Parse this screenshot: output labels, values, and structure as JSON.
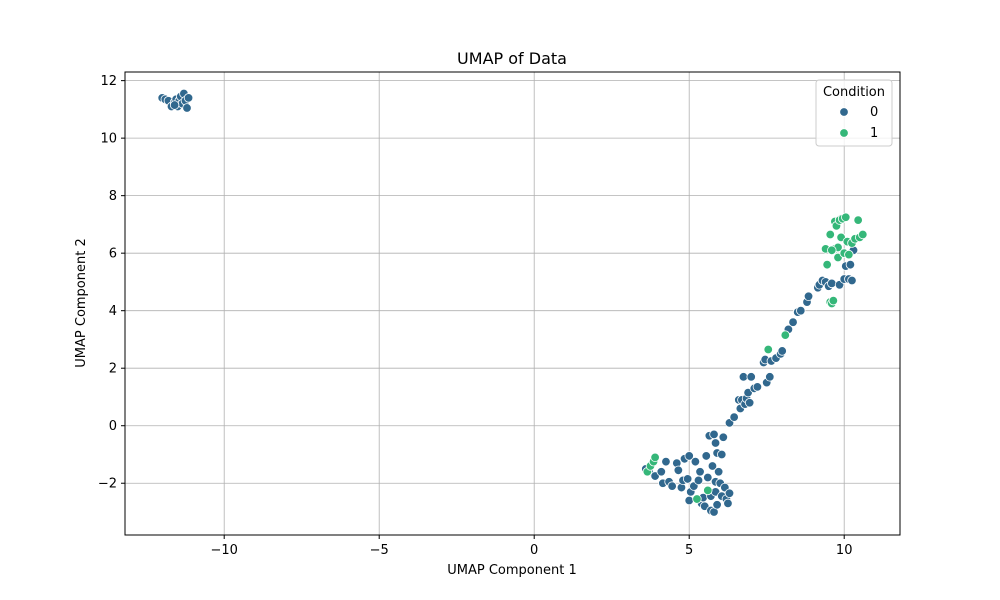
{
  "chart_data": {
    "type": "scatter",
    "title": "UMAP of Data",
    "xlabel": "UMAP Component 1",
    "ylabel": "UMAP Component 2",
    "xlim": [
      -13.2,
      11.8
    ],
    "ylim": [
      -3.8,
      12.3
    ],
    "xticks": [
      -10,
      -5,
      0,
      5,
      10
    ],
    "yticks": [
      -2,
      0,
      2,
      4,
      6,
      8,
      10,
      12
    ],
    "xtick_labels": [
      "−10",
      "−5",
      "0",
      "5",
      "10"
    ],
    "ytick_labels": [
      "−2",
      "0",
      "2",
      "4",
      "6",
      "8",
      "10",
      "12"
    ],
    "grid": true,
    "legend": {
      "title": "Condition",
      "placement": "top-right",
      "entries": [
        "0",
        "1"
      ]
    },
    "colors": {
      "0": "#31688e",
      "1": "#35b779"
    },
    "series": [
      {
        "name": "0",
        "points": [
          [
            -12.0,
            11.4
          ],
          [
            -11.9,
            11.35
          ],
          [
            -11.8,
            11.3
          ],
          [
            -11.7,
            11.1
          ],
          [
            -11.6,
            11.25
          ],
          [
            -11.55,
            11.35
          ],
          [
            -11.5,
            11.1
          ],
          [
            -11.45,
            11.3
          ],
          [
            -11.4,
            11.45
          ],
          [
            -11.35,
            11.2
          ],
          [
            -11.3,
            11.55
          ],
          [
            -11.25,
            11.3
          ],
          [
            -11.2,
            11.05
          ],
          [
            -11.15,
            11.4
          ],
          [
            -11.6,
            11.15
          ],
          [
            3.6,
            -1.5
          ],
          [
            3.7,
            -1.6
          ],
          [
            3.9,
            -1.75
          ],
          [
            4.1,
            -1.6
          ],
          [
            4.15,
            -2.0
          ],
          [
            4.25,
            -1.25
          ],
          [
            4.35,
            -1.95
          ],
          [
            4.45,
            -2.1
          ],
          [
            4.6,
            -1.3
          ],
          [
            4.65,
            -1.55
          ],
          [
            4.75,
            -2.15
          ],
          [
            4.8,
            -1.9
          ],
          [
            4.85,
            -1.15
          ],
          [
            4.95,
            -1.85
          ],
          [
            5.0,
            -2.6
          ],
          [
            5.05,
            -2.3
          ],
          [
            5.0,
            -1.05
          ],
          [
            5.15,
            -2.1
          ],
          [
            5.2,
            -1.25
          ],
          [
            5.3,
            -1.9
          ],
          [
            5.35,
            -1.6
          ],
          [
            5.4,
            -2.7
          ],
          [
            5.45,
            -2.5
          ],
          [
            5.5,
            -2.8
          ],
          [
            5.55,
            -1.05
          ],
          [
            5.6,
            -1.8
          ],
          [
            5.65,
            -0.35
          ],
          [
            5.7,
            -2.45
          ],
          [
            5.7,
            -2.95
          ],
          [
            5.75,
            -1.4
          ],
          [
            5.8,
            -3.0
          ],
          [
            5.8,
            -0.3
          ],
          [
            5.85,
            -0.6
          ],
          [
            5.85,
            -1.95
          ],
          [
            5.85,
            -2.3
          ],
          [
            5.9,
            -0.95
          ],
          [
            5.9,
            -2.75
          ],
          [
            5.95,
            -1.6
          ],
          [
            6.0,
            -2.0
          ],
          [
            6.05,
            -2.45
          ],
          [
            6.1,
            -0.4
          ],
          [
            6.15,
            -2.15
          ],
          [
            6.2,
            -2.55
          ],
          [
            6.25,
            -2.7
          ],
          [
            6.3,
            -2.35
          ],
          [
            6.05,
            -1.0
          ],
          [
            6.3,
            0.1
          ],
          [
            6.45,
            0.3
          ],
          [
            6.6,
            0.9
          ],
          [
            6.65,
            0.6
          ],
          [
            6.7,
            0.9
          ],
          [
            6.75,
            1.7
          ],
          [
            6.8,
            0.75
          ],
          [
            6.85,
            0.95
          ],
          [
            6.9,
            1.15
          ],
          [
            6.95,
            0.8
          ],
          [
            7.0,
            1.7
          ],
          [
            7.1,
            1.3
          ],
          [
            7.2,
            1.35
          ],
          [
            7.4,
            2.2
          ],
          [
            7.45,
            2.3
          ],
          [
            7.5,
            1.5
          ],
          [
            7.6,
            1.7
          ],
          [
            7.65,
            2.25
          ],
          [
            7.8,
            2.35
          ],
          [
            7.95,
            2.5
          ],
          [
            8.0,
            2.6
          ],
          [
            8.2,
            3.35
          ],
          [
            8.35,
            3.6
          ],
          [
            8.5,
            3.95
          ],
          [
            8.6,
            4.0
          ],
          [
            8.8,
            4.3
          ],
          [
            8.85,
            4.5
          ],
          [
            9.15,
            4.8
          ],
          [
            9.2,
            4.9
          ],
          [
            9.3,
            5.05
          ],
          [
            9.4,
            5.0
          ],
          [
            9.5,
            4.85
          ],
          [
            9.6,
            4.95
          ],
          [
            9.85,
            4.9
          ],
          [
            10.0,
            5.1
          ],
          [
            10.05,
            5.55
          ],
          [
            10.15,
            5.1
          ],
          [
            10.2,
            5.6
          ],
          [
            10.25,
            5.05
          ],
          [
            10.3,
            6.1
          ],
          [
            9.75,
            7.05
          ],
          [
            9.9,
            7.2
          ]
        ]
      },
      {
        "name": "1",
        "points": [
          [
            3.65,
            -1.6
          ],
          [
            3.75,
            -1.4
          ],
          [
            3.85,
            -1.25
          ],
          [
            3.9,
            -1.1
          ],
          [
            5.25,
            -2.55
          ],
          [
            5.6,
            -2.25
          ],
          [
            7.55,
            2.65
          ],
          [
            8.1,
            3.15
          ],
          [
            9.4,
            6.15
          ],
          [
            9.45,
            5.6
          ],
          [
            9.55,
            4.3
          ],
          [
            9.55,
            6.65
          ],
          [
            9.6,
            4.25
          ],
          [
            9.65,
            4.35
          ],
          [
            9.7,
            7.1
          ],
          [
            9.7,
            6.15
          ],
          [
            9.75,
            6.95
          ],
          [
            9.8,
            5.85
          ],
          [
            9.8,
            6.2
          ],
          [
            9.85,
            7.15
          ],
          [
            9.9,
            6.55
          ],
          [
            9.95,
            7.2
          ],
          [
            10.0,
            6.0
          ],
          [
            10.05,
            7.25
          ],
          [
            10.1,
            6.4
          ],
          [
            10.15,
            5.95
          ],
          [
            10.25,
            6.35
          ],
          [
            10.35,
            6.5
          ],
          [
            10.45,
            7.15
          ],
          [
            10.5,
            6.55
          ],
          [
            10.6,
            6.65
          ],
          [
            9.6,
            6.1
          ]
        ]
      }
    ]
  }
}
